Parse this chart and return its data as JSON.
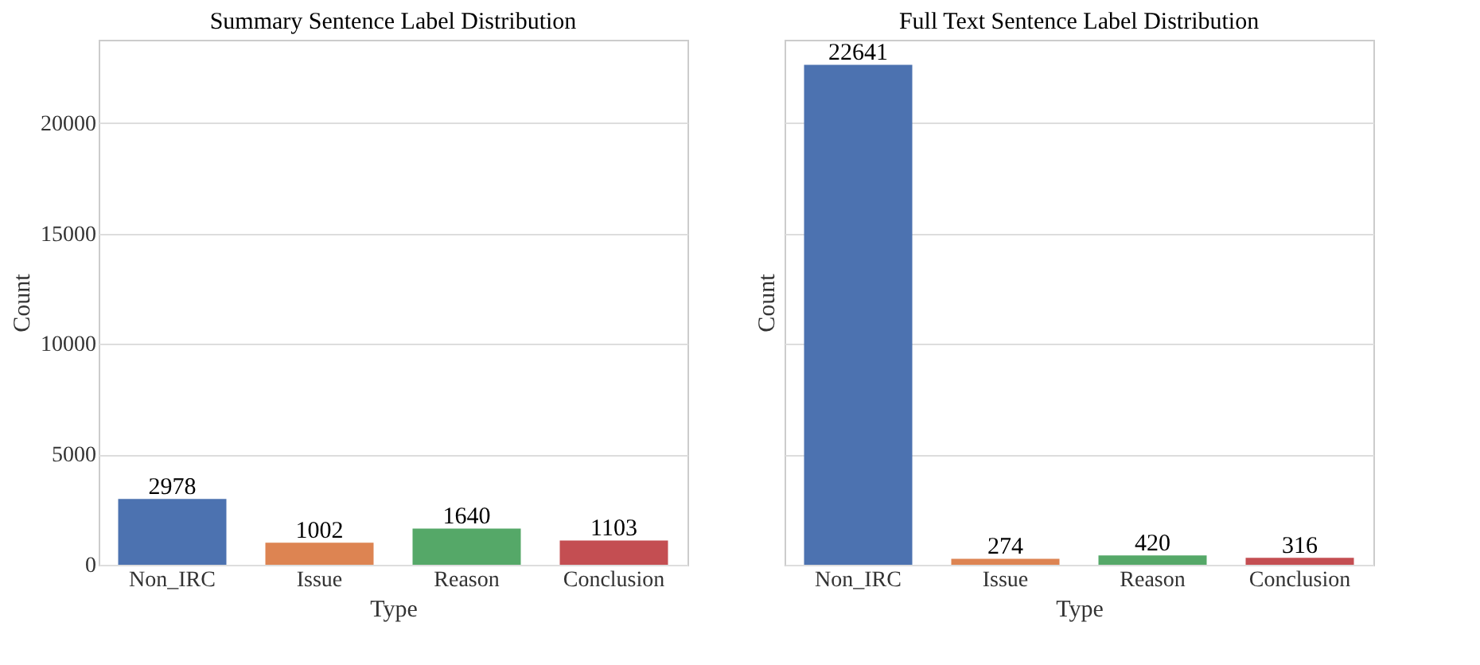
{
  "chart_data": [
    {
      "type": "bar",
      "title": "Summary Sentence Label Distribution",
      "xlabel": "Type",
      "ylabel": "Count",
      "categories": [
        "Non_IRC",
        "Issue",
        "Reason",
        "Conclusion"
      ],
      "values": [
        2978,
        1002,
        1640,
        1103
      ],
      "colors": [
        "#4c72b0",
        "#dd8452",
        "#55a868",
        "#c44e52"
      ],
      "ylim": [
        0,
        23773
      ],
      "yticks": [
        0,
        5000,
        10000,
        15000,
        20000
      ],
      "grid": "y",
      "data_labels": true
    },
    {
      "type": "bar",
      "title": "Full Text Sentence Label Distribution",
      "xlabel": "Type",
      "ylabel": "Count",
      "categories": [
        "Non_IRC",
        "Issue",
        "Reason",
        "Conclusion"
      ],
      "values": [
        22641,
        274,
        420,
        316
      ],
      "colors": [
        "#4c72b0",
        "#dd8452",
        "#55a868",
        "#c44e52"
      ],
      "ylim": [
        0,
        23773
      ],
      "yticks": [
        0,
        5000,
        10000,
        15000,
        20000
      ],
      "grid": "y",
      "data_labels": true,
      "tick_labels": "x"
    }
  ]
}
